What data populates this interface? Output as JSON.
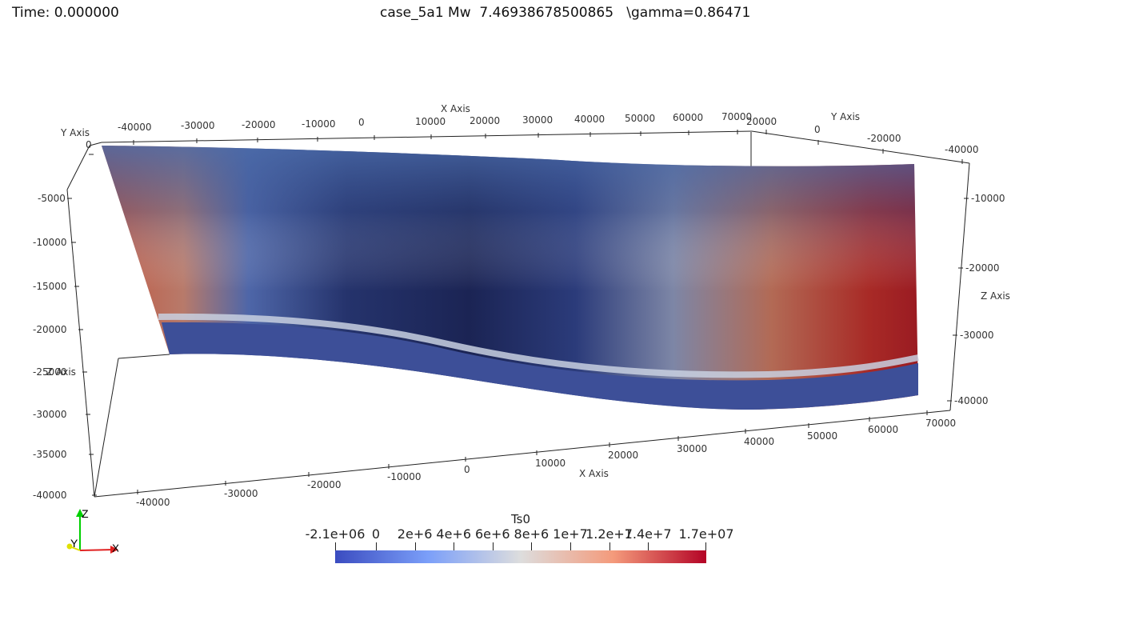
{
  "header": {
    "time_label": "Time: 0.000000",
    "title": "case_5a1 Mw  7.46938678500865   \\gamma=0.86471"
  },
  "axes": {
    "x_axis_title": "X Axis",
    "y_axis_title": "Y Axis",
    "z_axis_title": "Z Axis",
    "x_ticks_top": [
      "-40000",
      "-30000",
      "-20000",
      "-10000",
      "0",
      "10000",
      "20000",
      "30000",
      "40000",
      "50000",
      "60000",
      "70000"
    ],
    "x_ticks_bottom": [
      "-40000",
      "-30000",
      "-20000",
      "-10000",
      "0",
      "10000",
      "20000",
      "30000",
      "40000",
      "50000",
      "60000",
      "70000"
    ],
    "y_ticks_top_left": [
      "0"
    ],
    "y_ticks_top_right": [
      "20000",
      "0",
      "-20000",
      "-40000"
    ],
    "z_ticks_left": [
      "-5000",
      "-10000",
      "-15000",
      "-20000",
      "-25000",
      "-30000",
      "-35000",
      "-40000"
    ],
    "z_ticks_right": [
      "-10000",
      "-20000",
      "-30000",
      "-40000"
    ]
  },
  "colorbar": {
    "title": "Ts0",
    "min": -2100000,
    "max": 17000000,
    "labels": [
      "-2.1e+06",
      "0",
      "2e+6",
      "4e+6",
      "6e+6",
      "8e+6",
      "1e+7",
      "1.2e+7",
      "1.4e+7",
      "1.7e+07"
    ],
    "label_values": [
      -2100000,
      0,
      2000000,
      4000000,
      6000000,
      8000000,
      10000000,
      12000000,
      14000000,
      17000000
    ],
    "colors": {
      "low": "#3b4cc0",
      "mid": "#dddddd",
      "high": "#b40426"
    }
  },
  "orientation_widget": {
    "z": "Z",
    "y": "Y",
    "x": "X",
    "z_color": "#00d000",
    "y_color": "#e0e000",
    "x_color": "#e02020"
  }
}
